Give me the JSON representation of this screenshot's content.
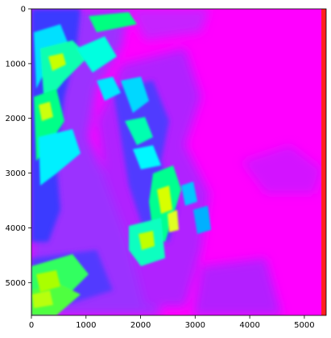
{
  "chart_data": {
    "type": "heatmap",
    "title": "",
    "xlabel": "",
    "ylabel": "",
    "xlim": [
      0,
      5400
    ],
    "ylim": [
      5600,
      0
    ],
    "x_ticks": [
      "0",
      "1000",
      "2000",
      "3000",
      "4000",
      "5000"
    ],
    "y_ticks": [
      "0",
      "1000",
      "2000",
      "3000",
      "4000",
      "5000"
    ],
    "colormap": "hsv",
    "grid": false,
    "legend": "none",
    "background_color": "#ff00ff",
    "features": [
      {
        "label": "green band top-left",
        "color": "#00ff66"
      },
      {
        "label": "cyan streaks",
        "color": "#00ffff"
      },
      {
        "label": "yellow cores",
        "color": "#ccff00"
      },
      {
        "label": "violet cloud field",
        "color": "#8a2be2"
      },
      {
        "label": "red right edge",
        "color": "#ff2020"
      }
    ]
  }
}
